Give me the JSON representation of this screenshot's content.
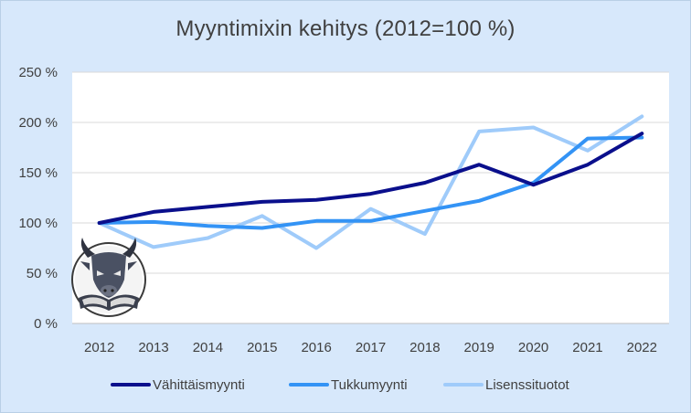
{
  "chart_data": {
    "type": "line",
    "title": "Myyntimixin kehitys (2012=100 %)",
    "xlabel": "",
    "ylabel": "",
    "categories": [
      "2012",
      "2013",
      "2014",
      "2015",
      "2016",
      "2017",
      "2018",
      "2019",
      "2020",
      "2021",
      "2022"
    ],
    "ylim": [
      0,
      250
    ],
    "yticks": [
      0,
      50,
      100,
      150,
      200,
      250
    ],
    "ytick_labels": [
      "0 %",
      "50 %",
      "100 %",
      "150 %",
      "200 %",
      "250 %"
    ],
    "grid": true,
    "legend_position": "bottom",
    "series": [
      {
        "name": "Vähittäismyynti",
        "color": "#0a0f8c",
        "values": [
          100,
          111,
          116,
          121,
          123,
          129,
          140,
          158,
          138,
          158,
          189
        ]
      },
      {
        "name": "Tukkumyynti",
        "color": "#3393f5",
        "values": [
          100,
          101,
          97,
          95,
          102,
          102,
          112,
          122,
          140,
          184,
          185
        ]
      },
      {
        "name": "Lisenssituotot",
        "color": "#9fcbfa",
        "values": [
          100,
          76,
          85,
          107,
          75,
          114,
          89,
          191,
          195,
          172,
          206
        ]
      }
    ]
  },
  "logo": {
    "icon": "bull-reading-book-icon"
  }
}
